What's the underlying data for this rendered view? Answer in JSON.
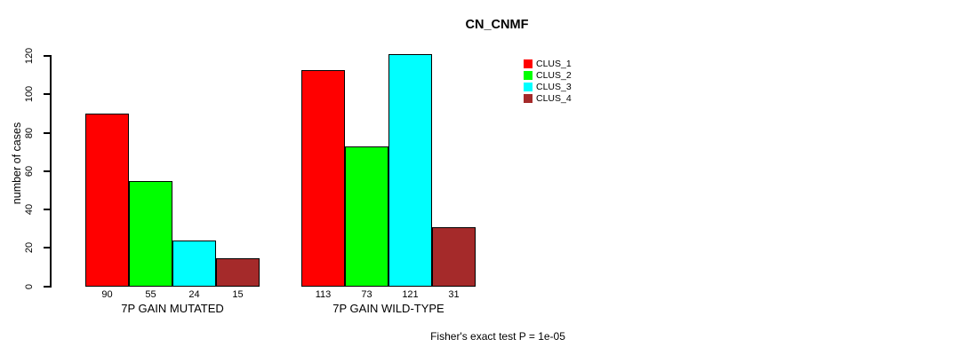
{
  "title": "CN_CNMF",
  "ylabel": "number of cases",
  "footer": "Fisher's exact test P = 1e-05",
  "chart_data": {
    "type": "bar",
    "title": "CN_CNMF",
    "ylabel": "number of cases",
    "xlabel": "",
    "annotation": "Fisher's exact test P = 1e-05",
    "categories": [
      "7P GAIN MUTATED",
      "7P GAIN WILD-TYPE"
    ],
    "series": [
      {
        "name": "CLUS_1",
        "color": "#ff0000",
        "values": [
          90,
          113
        ]
      },
      {
        "name": "CLUS_2",
        "color": "#00ff00",
        "values": [
          55,
          73
        ]
      },
      {
        "name": "CLUS_3",
        "color": "#00ffff",
        "values": [
          24,
          121
        ]
      },
      {
        "name": "CLUS_4",
        "color": "#a52a2a",
        "values": [
          15,
          31
        ]
      }
    ],
    "bar_value_labels": [
      [
        "90",
        "55",
        "24",
        "15"
      ],
      [
        "113",
        "73",
        "121",
        "31"
      ]
    ],
    "yticks": [
      0,
      20,
      40,
      60,
      80,
      100,
      120
    ],
    "ylim": [
      0,
      120
    ],
    "grid": false,
    "legend_position": "right",
    "axis_color": "#000000",
    "bar_border_color": "#000000"
  }
}
